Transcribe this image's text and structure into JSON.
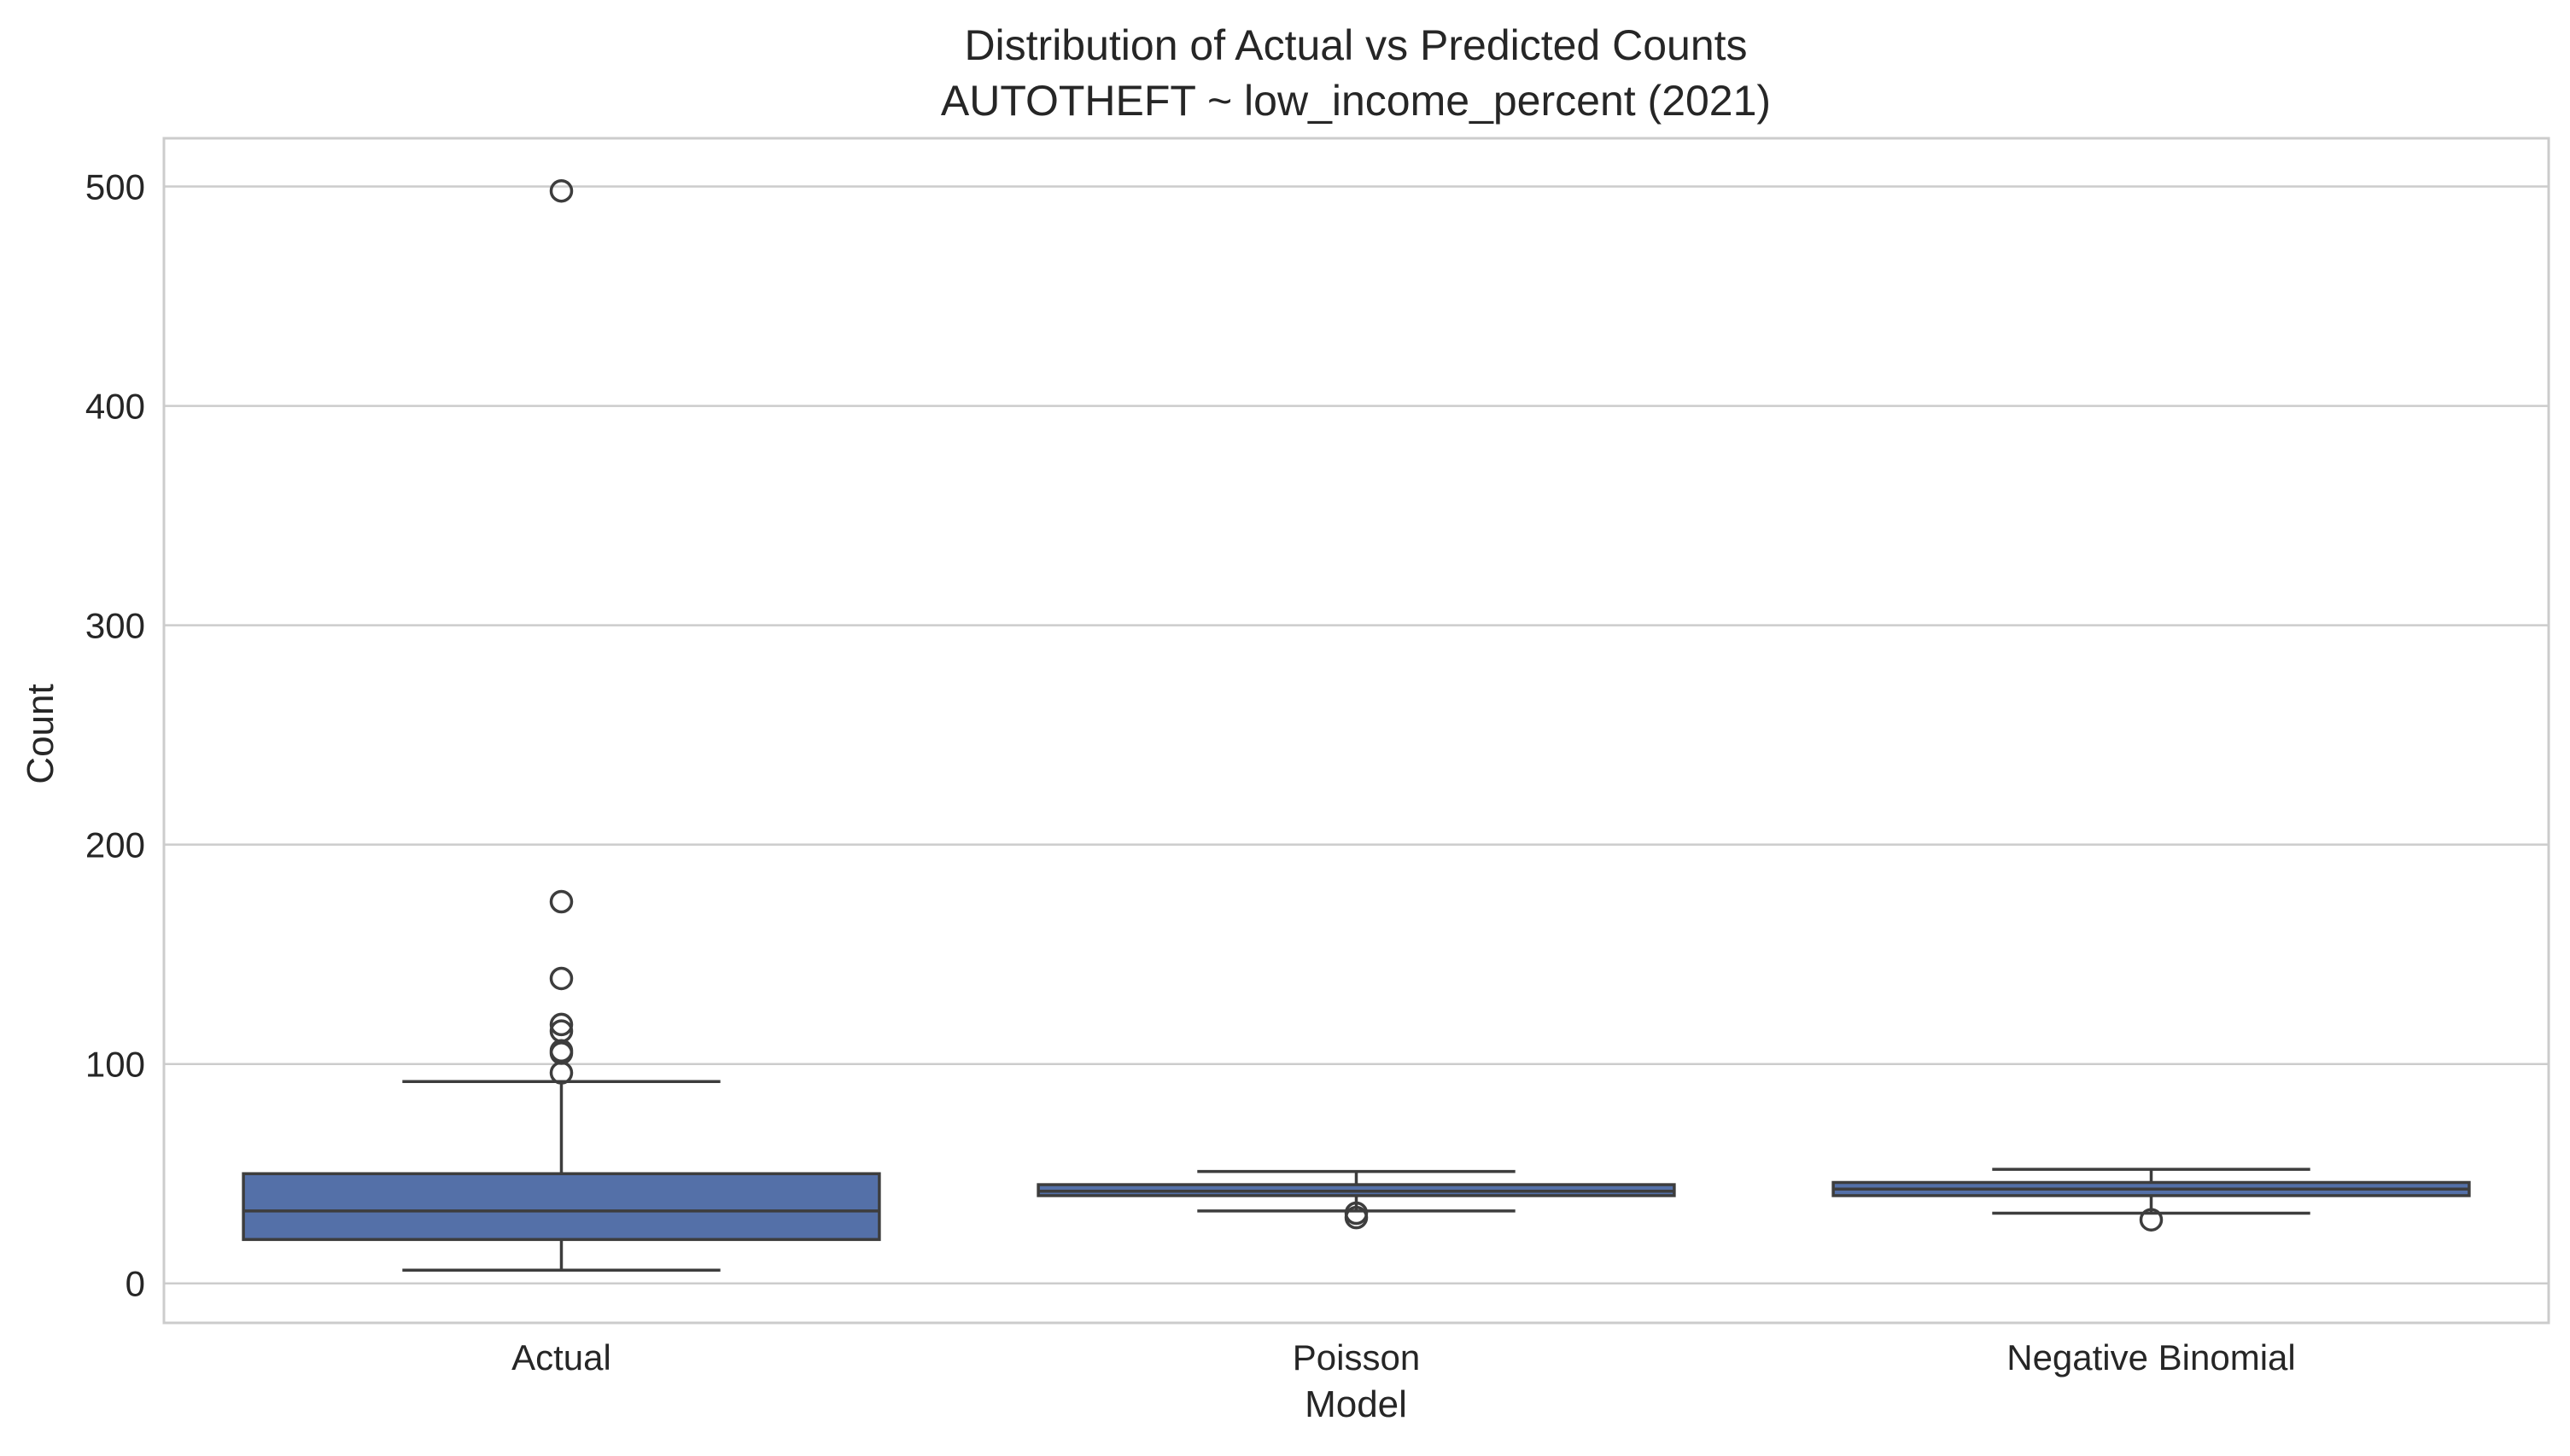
{
  "chart_data": {
    "type": "box",
    "title": "Distribution of Actual vs Predicted Counts",
    "subtitle": "AUTOTHEFT ~ low_income_percent (2021)",
    "xlabel": "Model",
    "ylabel": "Count",
    "ylim": [
      -18,
      522
    ],
    "yticks": [
      0,
      100,
      200,
      300,
      400,
      500
    ],
    "yticklabels": [
      "0",
      "100",
      "200",
      "300",
      "400",
      "500"
    ],
    "grid": true,
    "categories": [
      "Actual",
      "Poisson",
      "Negative Binomial"
    ],
    "boxes": [
      {
        "category": "Actual",
        "whisker_low": 6,
        "q1": 20,
        "median": 33,
        "q3": 50,
        "whisker_high": 92,
        "outliers": [
          96,
          105,
          106,
          115,
          118,
          139,
          174,
          498
        ]
      },
      {
        "category": "Poisson",
        "whisker_low": 33,
        "q1": 40,
        "median": 42,
        "q3": 45,
        "whisker_high": 51,
        "outliers": [
          30,
          32
        ]
      },
      {
        "category": "Negative Binomial",
        "whisker_low": 32,
        "q1": 40,
        "median": 43,
        "q3": 46,
        "whisker_high": 52,
        "outliers": [
          29
        ]
      }
    ],
    "colors": {
      "box_fill": "#5470a8",
      "line": "#3d3d3d",
      "grid": "#cccccc",
      "frame": "#cccccc"
    }
  }
}
